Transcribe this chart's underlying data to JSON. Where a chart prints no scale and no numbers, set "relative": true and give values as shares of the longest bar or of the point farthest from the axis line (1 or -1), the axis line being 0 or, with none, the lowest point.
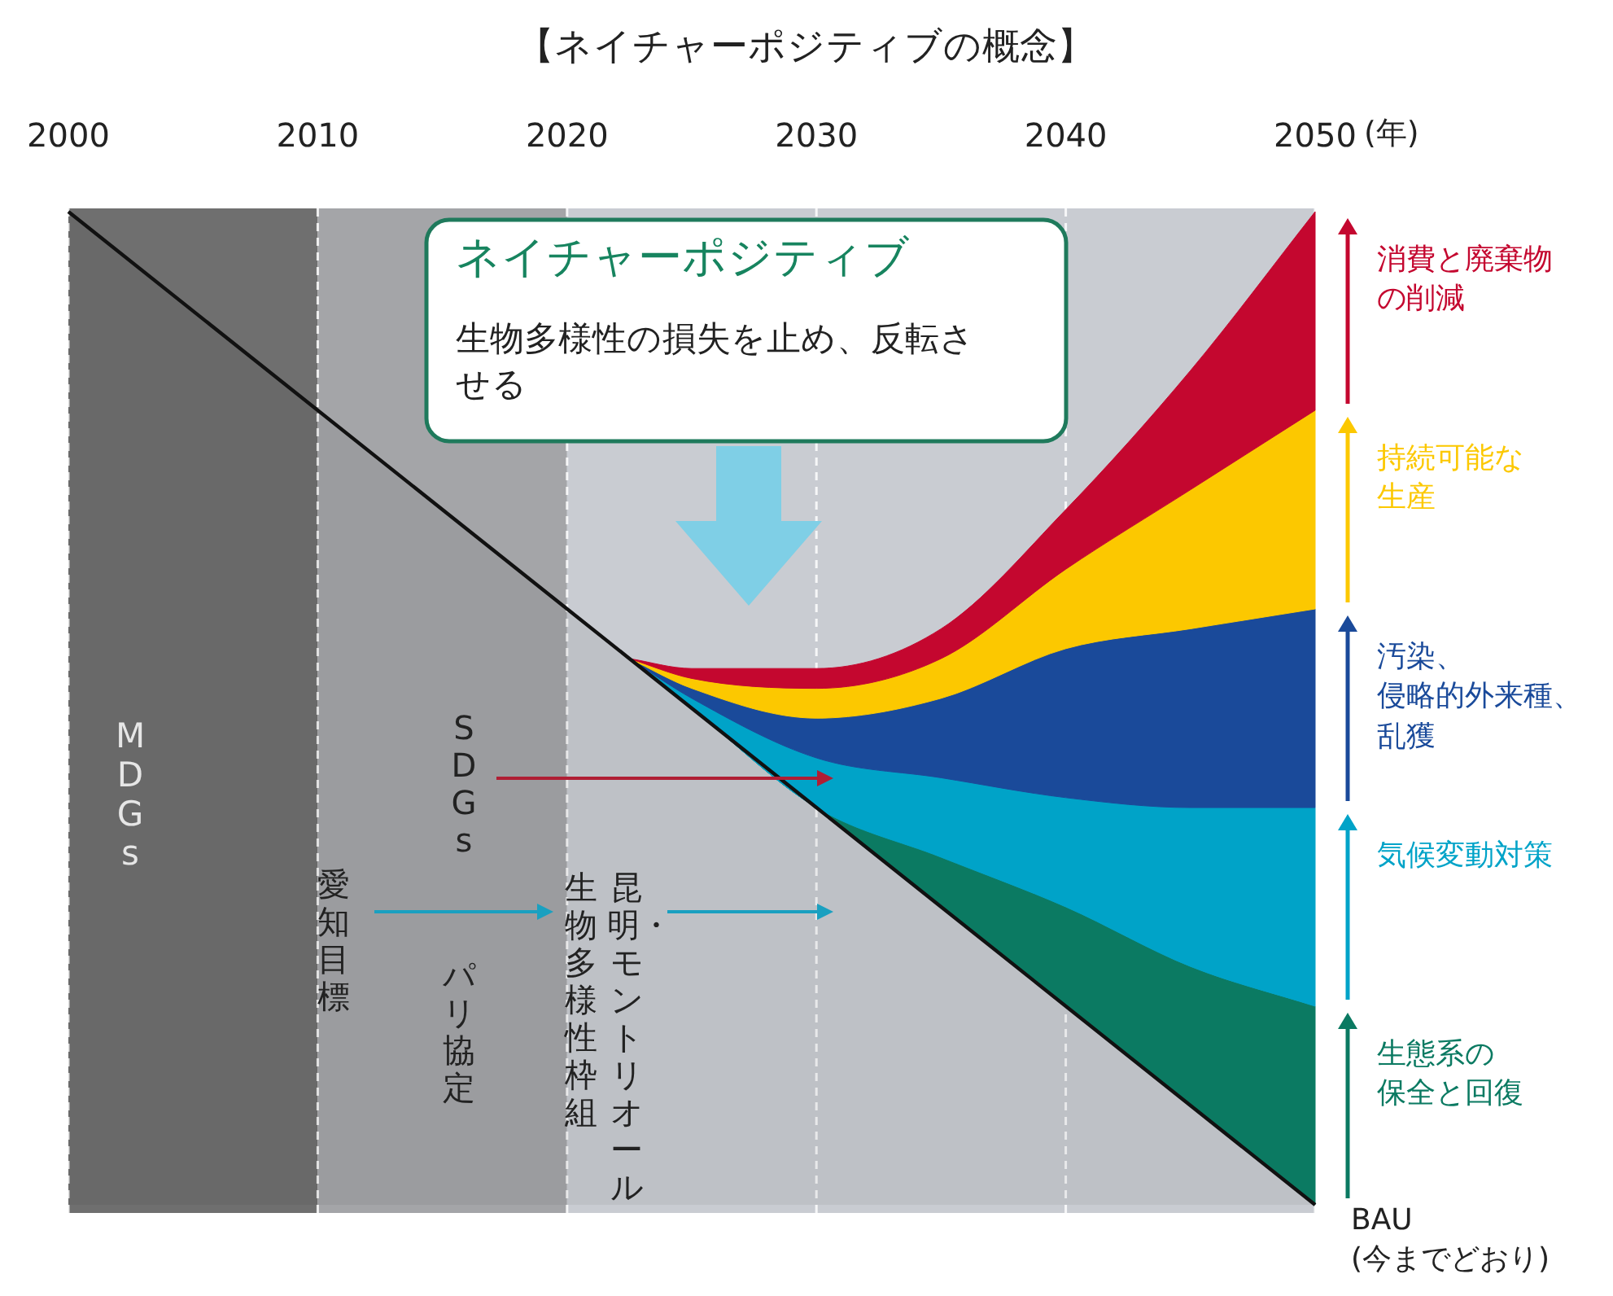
{
  "chart_data": {
    "type": "area",
    "title": "【ネイチャーポジティブの概念】",
    "xlabel": "(年)",
    "relative": true,
    "stacked": true,
    "grid": "x",
    "legend": "right",
    "x": [
      2000,
      2022.5,
      2025,
      2030,
      2035,
      2040,
      2045,
      2050
    ],
    "xlim": [
      2000,
      2050
    ],
    "xticks": [
      2000,
      2010,
      2020,
      2030,
      2040,
      2050
    ],
    "bands": [
      {
        "axis": "x",
        "from": 2000,
        "to": 2010,
        "color": "#6f6f6f"
      },
      {
        "axis": "x",
        "from": 2010,
        "to": 2020,
        "color": "#a4a5a8"
      },
      {
        "axis": "x",
        "from": 2020,
        "to": 2050,
        "color": "#c9ccd2"
      }
    ],
    "series": [
      {
        "name": "BAU(今までどおり)",
        "color": "#111111",
        "values": [
          1,
          0.55,
          0.5,
          0.4,
          0.3,
          0.2,
          0.1,
          0
        ]
      },
      {
        "name": "生態系の保全と回復",
        "color": "#0b7a62",
        "values": [
          null,
          0,
          0,
          0,
          0.05,
          0.1,
          0.14,
          0.2
        ]
      },
      {
        "name": "気候変動対策",
        "color": "#00a3c8",
        "values": [
          null,
          0,
          0.01,
          0.05,
          0.08,
          0.11,
          0.16,
          0.2
        ]
      },
      {
        "name": "汚染、侵略的外来種、乱獲",
        "color": "#1a4a9a",
        "values": [
          null,
          0,
          0.01,
          0.04,
          0.08,
          0.15,
          0.18,
          0.2
        ]
      },
      {
        "name": "持続可能な生産",
        "color": "#fcc800",
        "values": [
          null,
          0,
          0.01,
          0.03,
          0.04,
          0.08,
          0.14,
          0.2
        ]
      },
      {
        "name": "消費と廃棄物の削減",
        "color": "#c4072f",
        "values": [
          null,
          0,
          0.01,
          0.02,
          0.03,
          0.06,
          0.12,
          0.2
        ]
      }
    ],
    "annotations": [
      "ネイチャーポジティブ",
      "生物多様性の損失を止め、反転させる",
      "MDGs",
      "SDGs",
      "愛知目標",
      "パリ協定",
      "昆明・モントリオール生物多様性枠組"
    ]
  }
}
